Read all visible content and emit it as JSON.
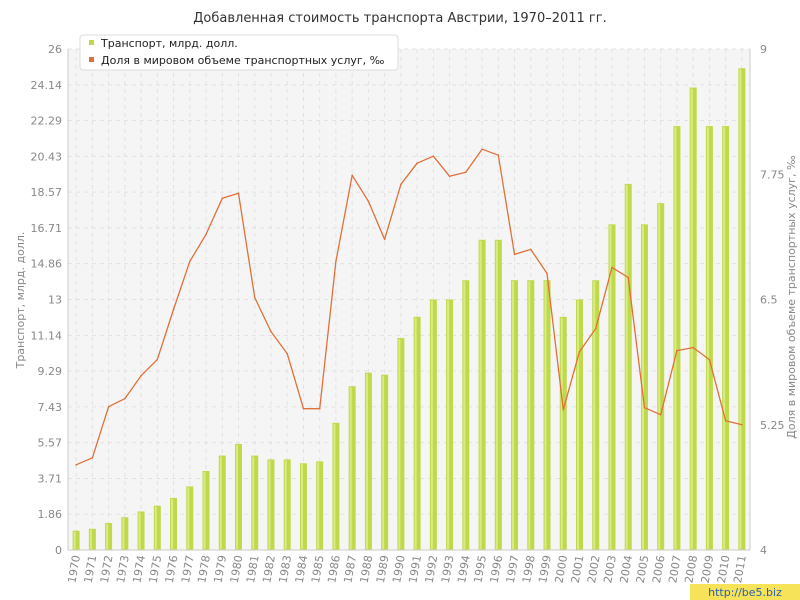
{
  "chart_data": {
    "type": "bar+line",
    "title": "Добавленная стоимость транспорта Австрии, 1970–2011 гг.",
    "ylabel_left": "Транспорт, млрд. долл.",
    "ylabel_right": "Доля в мировом объеме транспортных услуг, ‰",
    "categories": [
      "1970",
      "1971",
      "1972",
      "1973",
      "1974",
      "1975",
      "1976",
      "1977",
      "1978",
      "1979",
      "1980",
      "1981",
      "1982",
      "1983",
      "1984",
      "1985",
      "1986",
      "1987",
      "1988",
      "1989",
      "1990",
      "1991",
      "1992",
      "1993",
      "1994",
      "1995",
      "1996",
      "1997",
      "1998",
      "1999",
      "2000",
      "2001",
      "2002",
      "2003",
      "2004",
      "2005",
      "2006",
      "2007",
      "2008",
      "2009",
      "2010",
      "2011"
    ],
    "left_axis": {
      "ylim": [
        0,
        26
      ],
      "ticks": [
        "0",
        "1.86",
        "3.71",
        "5.57",
        "7.43",
        "9.29",
        "11.14",
        "13",
        "14.86",
        "16.71",
        "18.57",
        "20.43",
        "22.29",
        "24.14",
        "26"
      ]
    },
    "right_axis": {
      "ylim": [
        4,
        9
      ],
      "ticks": [
        "4",
        "5.25",
        "6.5",
        "7.75",
        "9"
      ]
    },
    "series": [
      {
        "name": "Транспорт, млрд. долл.",
        "type": "bar",
        "axis": "left",
        "color": "#bfd94a",
        "values": [
          1.0,
          1.1,
          1.4,
          1.7,
          2.0,
          2.3,
          2.7,
          3.3,
          4.1,
          4.9,
          5.5,
          4.9,
          4.7,
          4.7,
          4.5,
          4.6,
          6.6,
          8.5,
          9.2,
          9.1,
          11.0,
          12.1,
          13.0,
          13.0,
          14.0,
          16.1,
          16.1,
          14.0,
          14.0,
          14.0,
          12.1,
          13.0,
          14.0,
          16.9,
          19.0,
          16.9,
          18.0,
          22.0,
          24.0,
          22.0,
          22.0,
          25.0
        ]
      },
      {
        "name": "Доля в мировом объеме транспортных услуг, ‰",
        "type": "line",
        "axis": "right",
        "color": "#e0703a",
        "values": [
          4.85,
          4.92,
          5.43,
          5.51,
          5.74,
          5.9,
          6.4,
          6.88,
          7.15,
          7.51,
          7.56,
          6.52,
          6.18,
          5.96,
          5.41,
          5.41,
          6.88,
          7.74,
          7.48,
          7.1,
          7.65,
          7.86,
          7.93,
          7.73,
          7.77,
          8.0,
          7.94,
          6.95,
          7.0,
          6.76,
          5.4,
          5.98,
          6.21,
          6.82,
          6.72,
          5.42,
          5.35,
          5.99,
          6.02,
          5.9,
          5.29,
          5.25
        ]
      }
    ],
    "legend_position": "top-left",
    "grid": true
  },
  "watermark": "http://be5.biz"
}
